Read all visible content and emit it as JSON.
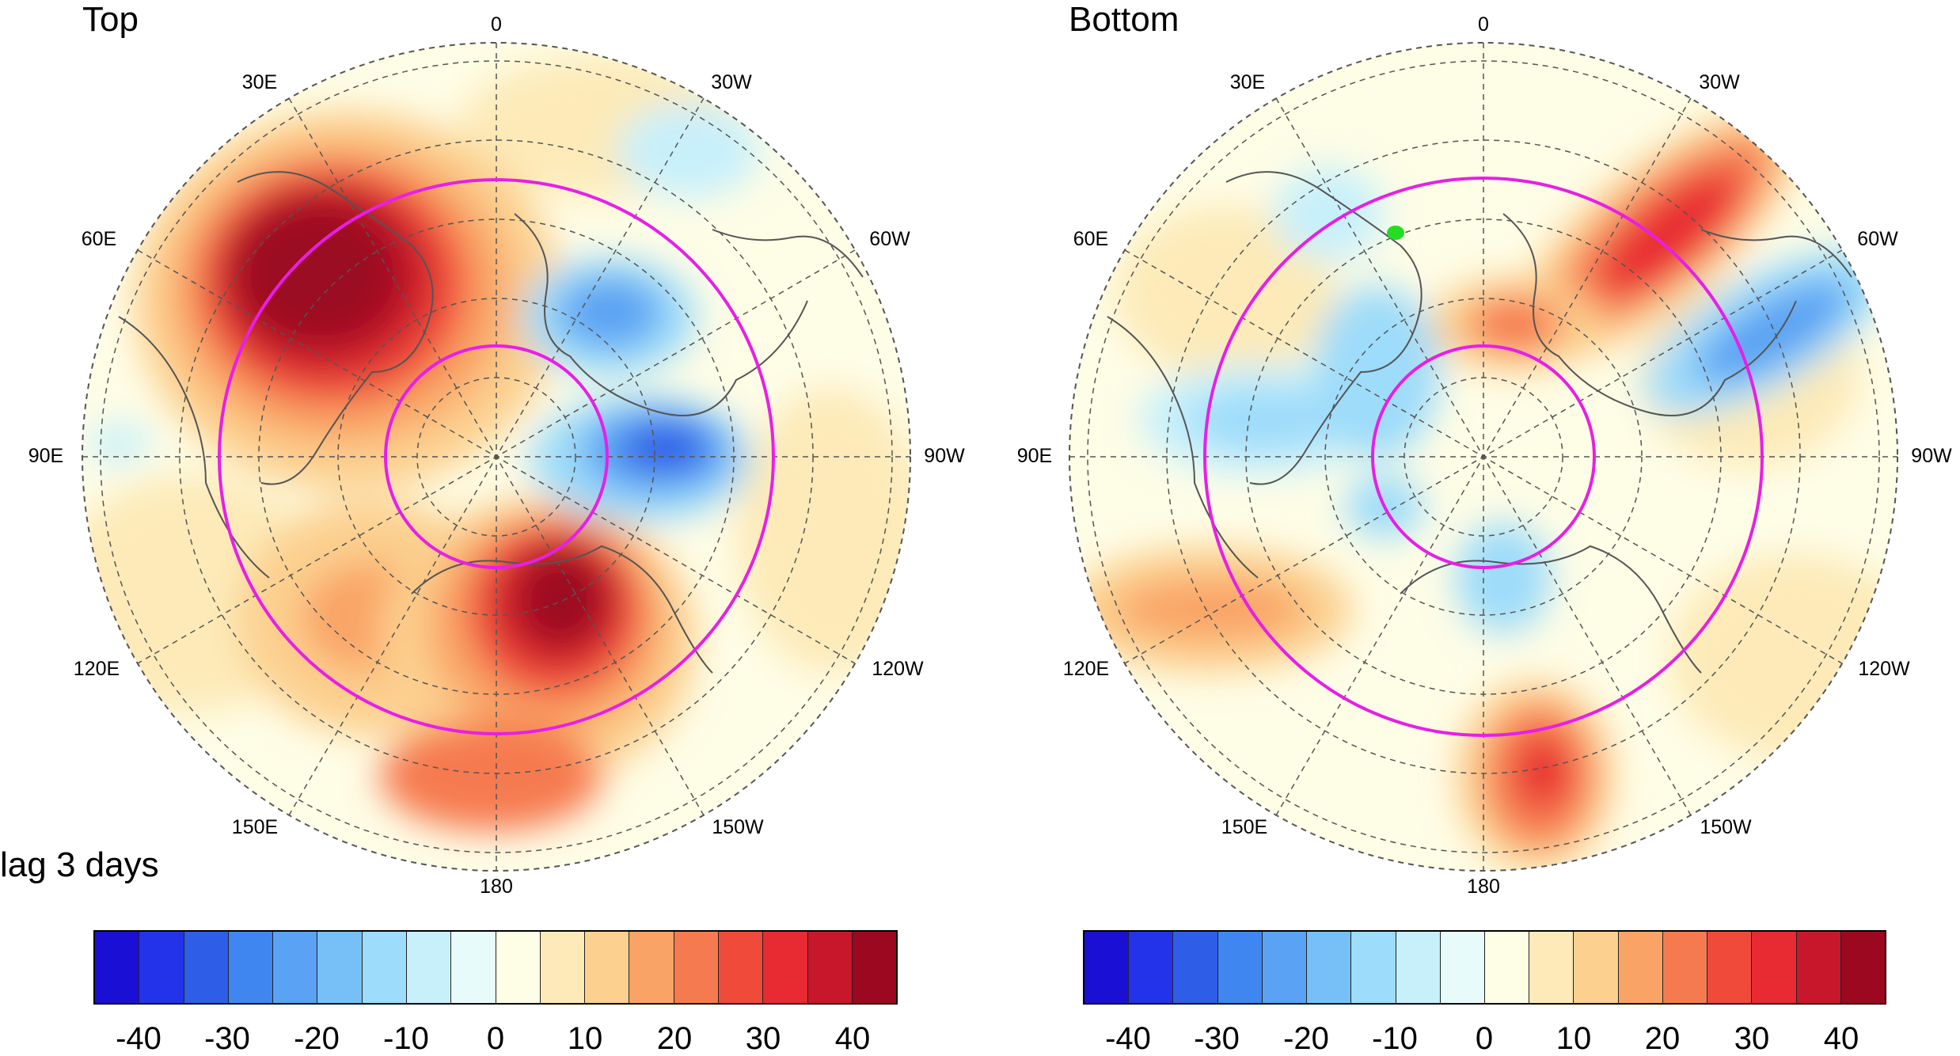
{
  "left_panel": {
    "title": "Top",
    "lag_label": "lag 3 days",
    "lon_labels": {
      "l0": "0",
      "l30w": "30W",
      "l60w": "60W",
      "l90w": "90W",
      "l120w": "120W",
      "l150w": "150W",
      "l180": "180",
      "l150e": "150E",
      "l120e": "120E",
      "l90e": "90E",
      "l60e": "60E",
      "l30e": "30E"
    }
  },
  "right_panel": {
    "title": "Bottom",
    "lon_labels": {
      "l0": "0",
      "l30w": "30W",
      "l60w": "60W",
      "l90w": "90W",
      "l120w": "120W",
      "l150w": "150W",
      "l180": "180",
      "l150e": "150E",
      "l120e": "120E",
      "l90e": "90E",
      "l60e": "60E",
      "l30e": "30E"
    }
  },
  "colorbar": {
    "tick_labels": {
      "t1": "-40",
      "t2": "-30",
      "t3": "-20",
      "t4": "-10",
      "t5": "0",
      "t6": "10",
      "t7": "20",
      "t8": "30",
      "t9": "40"
    },
    "colors": [
      "#1a0fd4",
      "#2233ea",
      "#2e5ee8",
      "#3f86f0",
      "#5aa2f3",
      "#77c0f7",
      "#9ddcfa",
      "#c8f0fb",
      "#e8fbfb",
      "#fefde6",
      "#fdeab8",
      "#fcd08f",
      "#f9a466",
      "#f67a50",
      "#f04a3b",
      "#e82a32",
      "#c8172b",
      "#9b0820"
    ]
  },
  "map_style": {
    "ring_color": "#e81ee8",
    "highlight_color": "#22dd22",
    "graticule_color": "#555555"
  }
}
